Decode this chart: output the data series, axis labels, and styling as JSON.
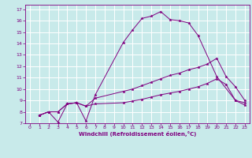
{
  "xlabel": "Windchill (Refroidissement éolien,°C)",
  "background_color": "#c8eaea",
  "grid_color": "#ffffff",
  "line_color": "#800080",
  "xlim": [
    -0.5,
    23.5
  ],
  "ylim": [
    7,
    17.4
  ],
  "xticks": [
    0,
    1,
    2,
    3,
    4,
    5,
    6,
    7,
    8,
    9,
    10,
    11,
    12,
    13,
    14,
    15,
    16,
    17,
    18,
    19,
    20,
    21,
    22,
    23
  ],
  "yticks": [
    7,
    8,
    9,
    10,
    11,
    12,
    13,
    14,
    15,
    16,
    17
  ],
  "line1_x": [
    1,
    2,
    3,
    4,
    5,
    6,
    7,
    10,
    11,
    12,
    13,
    14,
    15,
    16,
    17,
    18,
    20,
    22,
    23
  ],
  "line1_y": [
    7.7,
    8.0,
    7.1,
    8.7,
    8.8,
    7.2,
    9.5,
    14.1,
    15.2,
    16.2,
    16.4,
    16.8,
    16.1,
    16.0,
    15.8,
    14.7,
    11.1,
    9.0,
    8.8
  ],
  "line2_x": [
    1,
    2,
    3,
    4,
    5,
    6,
    7,
    10,
    11,
    12,
    13,
    14,
    15,
    16,
    17,
    18,
    19,
    20,
    21,
    22,
    23
  ],
  "line2_y": [
    7.7,
    8.0,
    8.0,
    8.7,
    8.8,
    8.5,
    9.2,
    9.8,
    10.0,
    10.3,
    10.6,
    10.9,
    11.2,
    11.4,
    11.7,
    11.9,
    12.2,
    12.7,
    11.1,
    10.2,
    9.0
  ],
  "line3_x": [
    1,
    2,
    3,
    4,
    5,
    6,
    7,
    10,
    11,
    12,
    13,
    14,
    15,
    16,
    17,
    18,
    19,
    20,
    21,
    22,
    23
  ],
  "line3_y": [
    7.7,
    8.0,
    8.0,
    8.7,
    8.8,
    8.5,
    8.7,
    8.8,
    8.95,
    9.1,
    9.3,
    9.5,
    9.65,
    9.8,
    10.0,
    10.2,
    10.5,
    10.9,
    10.4,
    9.0,
    8.6
  ]
}
